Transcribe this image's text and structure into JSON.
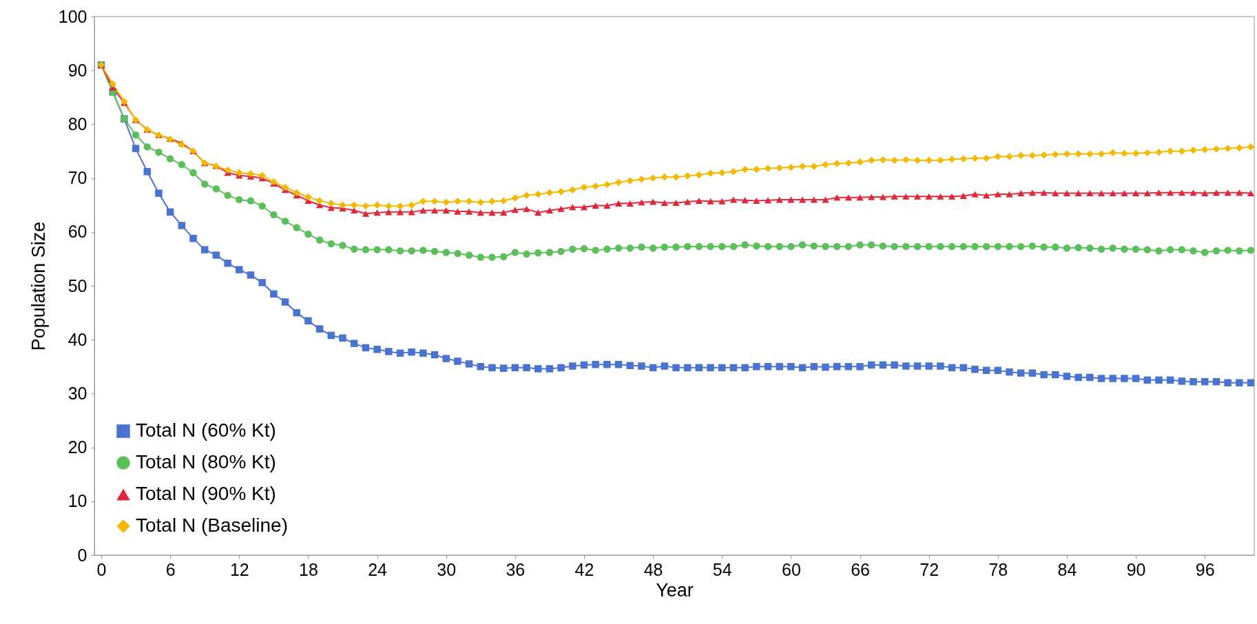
{
  "chart_data": {
    "type": "line",
    "xlabel": "Year",
    "ylabel": "Population Size",
    "x": [
      0,
      1,
      2,
      3,
      4,
      5,
      6,
      7,
      8,
      9,
      10,
      11,
      12,
      13,
      14,
      15,
      16,
      17,
      18,
      19,
      20,
      21,
      22,
      23,
      24,
      25,
      26,
      27,
      28,
      29,
      30,
      31,
      32,
      33,
      34,
      35,
      36,
      37,
      38,
      39,
      40,
      41,
      42,
      43,
      44,
      45,
      46,
      47,
      48,
      49,
      50,
      51,
      52,
      53,
      54,
      55,
      56,
      57,
      58,
      59,
      60,
      61,
      62,
      63,
      64,
      65,
      66,
      67,
      68,
      69,
      70,
      71,
      72,
      73,
      74,
      75,
      76,
      77,
      78,
      79,
      80,
      81,
      82,
      83,
      84,
      85,
      86,
      87,
      88,
      89,
      90,
      91,
      92,
      93,
      94,
      95,
      96,
      97,
      98,
      99,
      100
    ],
    "xlim": [
      -0.6,
      100.3
    ],
    "xticks": [
      0,
      6,
      12,
      18,
      24,
      30,
      36,
      42,
      48,
      54,
      60,
      66,
      72,
      78,
      84,
      90,
      96
    ],
    "ylim": [
      0,
      100
    ],
    "yticks": [
      0,
      10,
      20,
      30,
      40,
      50,
      60,
      70,
      80,
      90,
      100
    ],
    "legend": "bottom left",
    "series": [
      {
        "name": "Total N (60% Kt)",
        "color": "#4a72d0",
        "marker": "square",
        "values": [
          91,
          86,
          81,
          75.5,
          71.2,
          67.2,
          63.7,
          61.2,
          58.8,
          56.7,
          55.7,
          54.2,
          53,
          52,
          50.6,
          48.5,
          47,
          45,
          43.5,
          42,
          40.8,
          40.3,
          39.3,
          38.5,
          38.2,
          37.8,
          37.5,
          37.7,
          37.5,
          37.2,
          36.5,
          36,
          35.5,
          35,
          34.8,
          34.7,
          34.8,
          34.8,
          34.6,
          34.6,
          34.8,
          35.1,
          35.3,
          35.4,
          35.4,
          35.4,
          35.2,
          35.1,
          34.8,
          35.1,
          34.8,
          34.8,
          34.8,
          34.8,
          34.8,
          34.8,
          34.8,
          35,
          35,
          35,
          35,
          34.8,
          35,
          34.9,
          35,
          35,
          35,
          35.3,
          35.3,
          35.3,
          35.1,
          35.1,
          35.1,
          35.1,
          34.8,
          34.8,
          34.5,
          34.3,
          34.3,
          34,
          33.8,
          33.8,
          33.5,
          33.5,
          33.2,
          33,
          33,
          32.8,
          32.8,
          32.8,
          32.8,
          32.5,
          32.5,
          32.5,
          32.3,
          32.2,
          32.2,
          32.2,
          32,
          32,
          32
        ]
      },
      {
        "name": "Total N (80% Kt)",
        "color": "#5cbf5a",
        "marker": "circle",
        "values": [
          91,
          86,
          81,
          78,
          75.8,
          74.8,
          73.6,
          72.5,
          71,
          68.9,
          68,
          66.8,
          66,
          65.8,
          64.8,
          63.2,
          62,
          60.8,
          59.6,
          58.5,
          57.8,
          57.5,
          56.8,
          56.7,
          56.7,
          56.7,
          56.5,
          56.5,
          56.6,
          56.4,
          56.2,
          56,
          55.7,
          55.3,
          55.3,
          55.4,
          56.2,
          55.9,
          56.1,
          56.2,
          56.4,
          56.8,
          56.9,
          56.6,
          56.8,
          57,
          57,
          57.2,
          57,
          57.2,
          57.2,
          57.3,
          57.3,
          57.3,
          57.3,
          57.3,
          57.6,
          57.4,
          57.3,
          57.3,
          57.3,
          57.6,
          57.4,
          57.3,
          57.3,
          57.3,
          57.6,
          57.6,
          57.4,
          57.3,
          57.3,
          57.3,
          57.3,
          57.3,
          57.3,
          57.3,
          57.3,
          57.3,
          57.3,
          57.3,
          57.3,
          57.4,
          57.2,
          57.2,
          57,
          57.1,
          57,
          56.8,
          57,
          56.8,
          56.8,
          56.7,
          56.5,
          56.7,
          56.7,
          56.5,
          56.2,
          56.5,
          56.6,
          56.5,
          56.6
        ]
      },
      {
        "name": "Total N (90% Kt)",
        "color": "#e0283c",
        "marker": "triangle",
        "values": [
          91,
          86.8,
          84,
          80.8,
          79,
          78,
          77.3,
          76.5,
          75,
          72.8,
          72.3,
          71,
          70.5,
          70.3,
          70,
          69,
          67.8,
          66.8,
          65.8,
          65,
          64.5,
          64.4,
          64,
          63.4,
          63.6,
          63.7,
          63.7,
          63.7,
          64,
          64,
          64,
          63.8,
          63.8,
          63.6,
          63.6,
          63.6,
          64.1,
          64.3,
          63.6,
          64,
          64.3,
          64.6,
          64.6,
          64.9,
          64.9,
          65.3,
          65.3,
          65.5,
          65.6,
          65.4,
          65.4,
          65.6,
          65.8,
          65.7,
          65.7,
          66,
          65.9,
          65.8,
          65.9,
          66,
          66,
          66,
          66,
          66,
          66.4,
          66.4,
          66.4,
          66.5,
          66.5,
          66.6,
          66.6,
          66.6,
          66.6,
          66.6,
          66.6,
          66.7,
          67,
          66.8,
          67,
          67,
          67.2,
          67.3,
          67.3,
          67.2,
          67.2,
          67.2,
          67.2,
          67.2,
          67.2,
          67.2,
          67.2,
          67.2,
          67.3,
          67.3,
          67.3,
          67.3,
          67.2,
          67.3,
          67.3,
          67.3,
          67.2
        ]
      },
      {
        "name": "Total N (Baseline)",
        "color": "#f5b800",
        "marker": "diamond",
        "values": [
          91,
          87.5,
          84.2,
          80.8,
          79,
          78,
          77.2,
          76.2,
          75,
          72.8,
          72.2,
          71.5,
          71,
          70.8,
          70.5,
          69.3,
          68.3,
          67.3,
          66.5,
          65.8,
          65.3,
          65,
          65,
          64.8,
          65,
          64.8,
          64.8,
          65,
          65.7,
          65.7,
          65.5,
          65.7,
          65.7,
          65.5,
          65.7,
          65.8,
          66.3,
          66.8,
          67,
          67.3,
          67.5,
          67.8,
          68.3,
          68.5,
          68.8,
          69.2,
          69.5,
          69.8,
          70,
          70.2,
          70.2,
          70.4,
          70.6,
          70.9,
          71,
          71.2,
          71.6,
          71.6,
          71.8,
          71.9,
          72,
          72.2,
          72.2,
          72.5,
          72.7,
          72.8,
          73,
          73.3,
          73.4,
          73.3,
          73.4,
          73.3,
          73.3,
          73.3,
          73.5,
          73.6,
          73.7,
          73.7,
          74,
          74,
          74.2,
          74.2,
          74.3,
          74.4,
          74.5,
          74.5,
          74.5,
          74.5,
          74.7,
          74.6,
          74.6,
          74.7,
          74.8,
          75,
          75,
          75.2,
          75.3,
          75.4,
          75.5,
          75.6,
          75.8
        ]
      }
    ]
  }
}
